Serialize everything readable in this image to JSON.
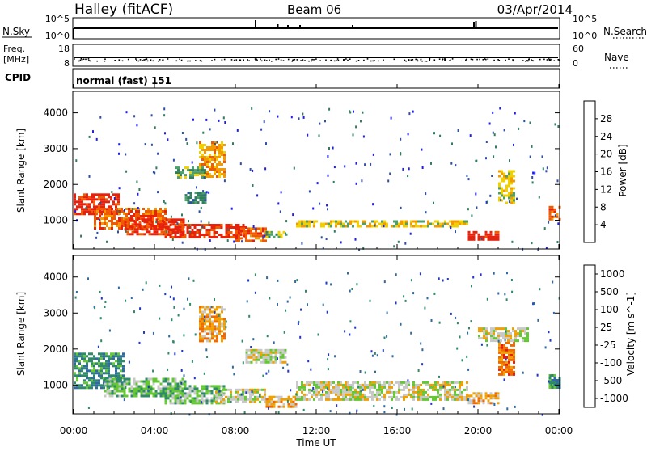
{
  "header": {
    "radar_title": "Halley (fitACF)",
    "beam": "Beam 06",
    "date": "03/Apr/2014"
  },
  "top_panels": {
    "nsky_label": "N.Sky",
    "nsky_ticks": [
      "10^5",
      "10^0"
    ],
    "nsearch_label": "N.Search",
    "nsearch_ticks": [
      "10^5",
      "10^0"
    ],
    "freq_label_line1": "Freq.",
    "freq_label_line2": "[MHz]",
    "freq_ticks": [
      "18",
      "8"
    ],
    "nave_label": "Nave",
    "nave_ticks": [
      "60",
      "0"
    ],
    "cpid_label": "CPID",
    "cpid_text": "normal (fast) 151"
  },
  "chart_data": [
    {
      "type": "heatmap",
      "name": "power",
      "ylabel": "Slant Range [km]",
      "ylim": [
        200,
        4600
      ],
      "yticks": [
        1000,
        2000,
        3000,
        4000
      ],
      "xlim": [
        0,
        24
      ],
      "colorbar": {
        "label": "Power [dB]",
        "ticks": [
          "4",
          "8",
          "12",
          "16",
          "20",
          "24",
          "28"
        ],
        "colors": [
          "#1e1ef0",
          "#2e4fa8",
          "#2f7d5c",
          "#4da06b",
          "#f0d000",
          "#f39a00",
          "#f25a00",
          "#e6210e"
        ]
      },
      "regions": [
        {
          "t0": 0.0,
          "t1": 2.2,
          "r0": 1150,
          "r1": 1750,
          "level": 7
        },
        {
          "t0": 1.0,
          "t1": 4.5,
          "r0": 800,
          "r1": 1350,
          "level": 6
        },
        {
          "t0": 2.5,
          "t1": 5.5,
          "r0": 600,
          "r1": 1050,
          "level": 7
        },
        {
          "t0": 4.5,
          "t1": 8.5,
          "r0": 500,
          "r1": 900,
          "level": 7
        },
        {
          "t0": 8.0,
          "t1": 9.5,
          "r0": 450,
          "r1": 800,
          "level": 6
        },
        {
          "t0": 6.2,
          "t1": 7.5,
          "r0": 2200,
          "r1": 3200,
          "level": 5
        },
        {
          "t0": 5.0,
          "t1": 6.5,
          "r0": 2200,
          "r1": 2500,
          "level": 3
        },
        {
          "t0": 5.5,
          "t1": 6.5,
          "r0": 1500,
          "r1": 1800,
          "level": 2
        },
        {
          "t0": 9.5,
          "t1": 10.5,
          "r0": 500,
          "r1": 700,
          "level": 3
        },
        {
          "t0": 11.0,
          "t1": 19.5,
          "r0": 800,
          "r1": 1000,
          "level": 4
        },
        {
          "t0": 19.5,
          "t1": 21.0,
          "r0": 450,
          "r1": 700,
          "level": 7
        },
        {
          "t0": 21.0,
          "t1": 21.8,
          "r0": 1500,
          "r1": 2400,
          "level": 4
        },
        {
          "t0": 23.5,
          "t1": 24.0,
          "r0": 1000,
          "r1": 1400,
          "level": 6
        }
      ]
    },
    {
      "type": "heatmap",
      "name": "velocity",
      "ylabel": "Slant Range [km]",
      "xlabel": "Time UT",
      "ylim": [
        200,
        4600
      ],
      "yticks": [
        1000,
        2000,
        3000,
        4000
      ],
      "xlim": [
        0,
        24
      ],
      "xticks": [
        "00:00",
        "04:00",
        "08:00",
        "12:00",
        "16:00",
        "20:00",
        "00:00"
      ],
      "colorbar": {
        "label": "Velocity [m s^-1]",
        "ticks": [
          "1000",
          "500",
          "100",
          "25",
          "-25",
          "-100",
          "-500",
          "-1000"
        ],
        "colors": [
          "#2039c8",
          "#2f6aa0",
          "#2f8a6b",
          "#64c832",
          "#c8c8c8",
          "#f0a000",
          "#f06a00",
          "#e61e0e"
        ]
      },
      "regions": [
        {
          "t0": 0.0,
          "t1": 2.5,
          "r0": 900,
          "r1": 1900,
          "level": 2
        },
        {
          "t0": 1.5,
          "t1": 5.5,
          "r0": 700,
          "r1": 1200,
          "level": 3
        },
        {
          "t0": 4.5,
          "t1": 7.5,
          "r0": 500,
          "r1": 1000,
          "level": 3
        },
        {
          "t0": 7.0,
          "t1": 9.5,
          "r0": 500,
          "r1": 900,
          "level": 4
        },
        {
          "t0": 9.5,
          "t1": 11.0,
          "r0": 400,
          "r1": 700,
          "level": 5
        },
        {
          "t0": 11.0,
          "t1": 19.5,
          "r0": 600,
          "r1": 1100,
          "level": 4
        },
        {
          "t0": 6.2,
          "t1": 7.5,
          "r0": 2200,
          "r1": 3200,
          "level": 5
        },
        {
          "t0": 8.5,
          "t1": 10.5,
          "r0": 1600,
          "r1": 2000,
          "level": 4
        },
        {
          "t0": 19.5,
          "t1": 21.0,
          "r0": 500,
          "r1": 800,
          "level": 5
        },
        {
          "t0": 21.0,
          "t1": 21.8,
          "r0": 1300,
          "r1": 2200,
          "level": 6
        },
        {
          "t0": 20.0,
          "t1": 22.5,
          "r0": 2200,
          "r1": 2600,
          "level": 4
        },
        {
          "t0": 23.5,
          "t1": 24.0,
          "r0": 900,
          "r1": 1300,
          "level": 2
        }
      ]
    }
  ]
}
